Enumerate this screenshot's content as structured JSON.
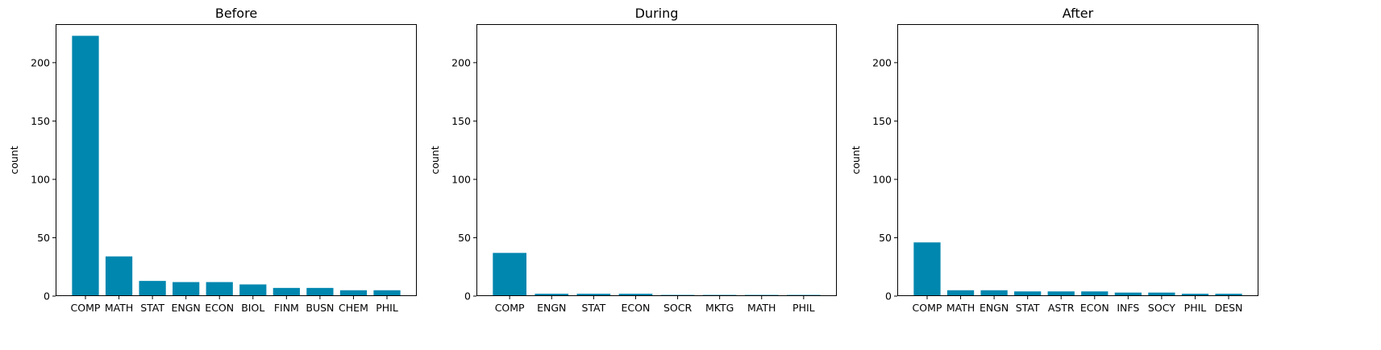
{
  "colors": {
    "bar": "#0087AF"
  },
  "chart_data": [
    {
      "type": "bar",
      "title": "Before",
      "ylabel": "count",
      "ylim": [
        0,
        233
      ],
      "yticks": [
        0,
        50,
        100,
        150,
        200
      ],
      "categories": [
        "COMP",
        "MATH",
        "STAT",
        "ENGN",
        "ECON",
        "BIOL",
        "FINM",
        "BUSN",
        "CHEM",
        "PHIL"
      ],
      "values": [
        223,
        34,
        13,
        12,
        12,
        10,
        7,
        7,
        5,
        5
      ]
    },
    {
      "type": "bar",
      "title": "During",
      "ylabel": "count",
      "ylim": [
        0,
        233
      ],
      "yticks": [
        0,
        50,
        100,
        150,
        200
      ],
      "categories": [
        "COMP",
        "ENGN",
        "STAT",
        "ECON",
        "SOCR",
        "MKTG",
        "MATH",
        "PHIL"
      ],
      "values": [
        37,
        2,
        2,
        2,
        1,
        1,
        1,
        1
      ]
    },
    {
      "type": "bar",
      "title": "After",
      "ylabel": "count",
      "ylim": [
        0,
        233
      ],
      "yticks": [
        0,
        50,
        100,
        150,
        200
      ],
      "categories": [
        "COMP",
        "MATH",
        "ENGN",
        "STAT",
        "ASTR",
        "ECON",
        "INFS",
        "SOCY",
        "PHIL",
        "DESN"
      ],
      "values": [
        46,
        5,
        5,
        4,
        4,
        4,
        3,
        3,
        2,
        2
      ]
    }
  ]
}
